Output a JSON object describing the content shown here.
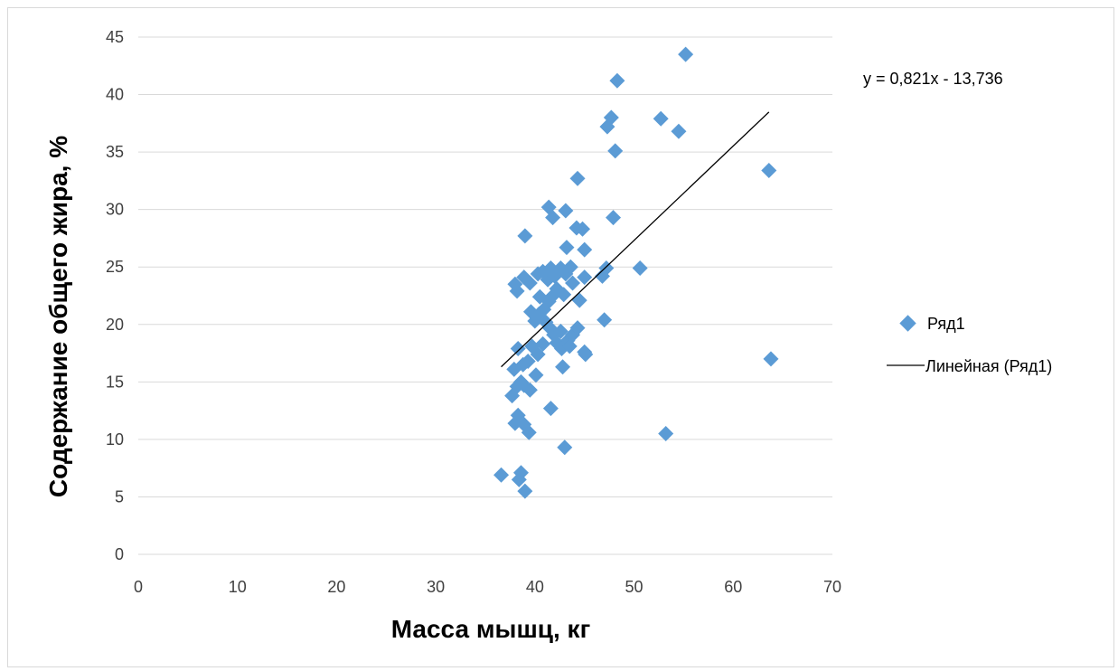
{
  "chart_data": {
    "type": "scatter",
    "xlabel": "Масса мышц, кг",
    "ylabel": "Содержание общего  жира, %",
    "xlim": [
      0,
      70
    ],
    "ylim": [
      0,
      45
    ],
    "x_ticks": [
      "0",
      "10",
      "20",
      "30",
      "40",
      "50",
      "60",
      "70"
    ],
    "y_ticks": [
      "0",
      "5",
      "10",
      "15",
      "20",
      "25",
      "30",
      "35",
      "40",
      "45"
    ],
    "grid": "horizontal",
    "legend_position": "right",
    "colors": {
      "marker": "#5b9bd5",
      "trendline": "#000000",
      "grid": "#d9d9d9"
    },
    "trendline_equation": "y = 0,821x - 13,736",
    "trendline": {
      "slope": 0.821,
      "intercept": -13.736,
      "x_range": [
        36.6,
        63.6
      ]
    },
    "series": [
      {
        "name": "Ряд1",
        "points": [
          [
            36.6,
            6.9
          ],
          [
            38.4,
            6.5
          ],
          [
            38.6,
            7.1
          ],
          [
            39.0,
            5.5
          ],
          [
            37.7,
            13.8
          ],
          [
            38.0,
            11.4
          ],
          [
            38.3,
            12.1
          ],
          [
            38.9,
            11.3
          ],
          [
            39.4,
            10.6
          ],
          [
            38.2,
            14.6
          ],
          [
            38.6,
            15.0
          ],
          [
            38.9,
            14.7
          ],
          [
            39.5,
            14.3
          ],
          [
            37.9,
            16.1
          ],
          [
            38.8,
            16.5
          ],
          [
            39.3,
            16.8
          ],
          [
            40.1,
            15.6
          ],
          [
            38.3,
            17.9
          ],
          [
            39.7,
            18.1
          ],
          [
            40.3,
            17.4
          ],
          [
            40.8,
            18.3
          ],
          [
            40.0,
            20.3
          ],
          [
            40.4,
            20.9
          ],
          [
            39.6,
            21.1
          ],
          [
            40.9,
            21.3
          ],
          [
            41.4,
            22.0
          ],
          [
            40.5,
            22.4
          ],
          [
            41.1,
            20.2
          ],
          [
            41.5,
            19.7
          ],
          [
            38.2,
            22.9
          ],
          [
            38.0,
            23.5
          ],
          [
            38.9,
            24.1
          ],
          [
            39.5,
            23.6
          ],
          [
            40.3,
            24.4
          ],
          [
            40.8,
            24.6
          ],
          [
            41.6,
            24.9
          ],
          [
            41.3,
            23.9
          ],
          [
            42.0,
            24.2
          ],
          [
            42.6,
            24.9
          ],
          [
            43.1,
            24.4
          ],
          [
            43.6,
            25.0
          ],
          [
            42.9,
            22.6
          ],
          [
            43.8,
            23.6
          ],
          [
            44.5,
            22.1
          ],
          [
            45.0,
            24.1
          ],
          [
            41.7,
            22.4
          ],
          [
            42.2,
            23.1
          ],
          [
            41.9,
            19.1
          ],
          [
            42.6,
            19.4
          ],
          [
            42.2,
            18.4
          ],
          [
            43.3,
            18.6
          ],
          [
            43.8,
            19.1
          ],
          [
            44.3,
            19.7
          ],
          [
            42.7,
            17.9
          ],
          [
            43.5,
            18.1
          ],
          [
            45.1,
            17.4
          ],
          [
            45.0,
            17.6
          ],
          [
            42.8,
            16.3
          ],
          [
            41.6,
            12.7
          ],
          [
            43.0,
            9.3
          ],
          [
            39.0,
            27.7
          ],
          [
            41.4,
            30.2
          ],
          [
            41.8,
            29.3
          ],
          [
            43.1,
            29.9
          ],
          [
            44.2,
            28.4
          ],
          [
            44.8,
            28.3
          ],
          [
            43.2,
            26.7
          ],
          [
            45.0,
            26.5
          ],
          [
            44.3,
            32.7
          ],
          [
            46.8,
            24.2
          ],
          [
            47.2,
            24.9
          ],
          [
            47.0,
            20.4
          ],
          [
            50.6,
            24.9
          ],
          [
            47.9,
            29.3
          ],
          [
            47.3,
            37.2
          ],
          [
            47.7,
            38.0
          ],
          [
            48.1,
            35.1
          ],
          [
            48.3,
            41.2
          ],
          [
            52.7,
            37.9
          ],
          [
            54.5,
            36.8
          ],
          [
            55.2,
            43.5
          ],
          [
            53.2,
            10.5
          ],
          [
            63.6,
            33.4
          ],
          [
            63.8,
            17.0
          ]
        ]
      }
    ],
    "legend": [
      {
        "label": "Ряд1"
      },
      {
        "label": "Линейная (Ряд1)"
      }
    ]
  }
}
